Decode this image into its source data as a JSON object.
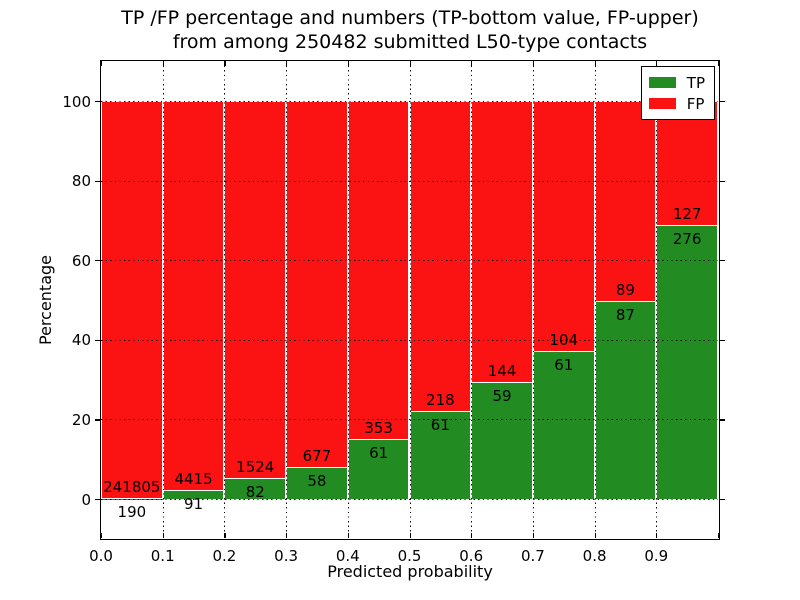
{
  "title": {
    "line1": "TP /FP percentage and numbers (TP-bottom value, FP-upper)",
    "line2": "from among 250482 submitted L50-type contacts"
  },
  "chart_data": {
    "type": "bar",
    "stacked": true,
    "title": "TP /FP percentage and numbers (TP-bottom value, FP-upper) from among 250482 submitted L50-type contacts",
    "xlabel": "Predicted probability",
    "ylabel": "Percentage",
    "total_contacts": 250482,
    "bin_starts": [
      0.0,
      0.1,
      0.2,
      0.3,
      0.4,
      0.5,
      0.6,
      0.7,
      0.8,
      0.9
    ],
    "bin_width": 0.1,
    "x_tick_labels": [
      "0.0",
      "0.1",
      "0.2",
      "0.3",
      "0.4",
      "0.5",
      "0.6",
      "0.7",
      "0.8",
      "0.9"
    ],
    "y_ticks": [
      0,
      20,
      40,
      60,
      80,
      100
    ],
    "xlim": [
      0.0,
      1.0
    ],
    "ylim": [
      -10.5,
      110
    ],
    "grid": "dotted-both-axes",
    "series": [
      {
        "name": "TP",
        "role": "bottom",
        "color": "#228b22",
        "counts": [
          190,
          91,
          82,
          58,
          61,
          61,
          59,
          61,
          87,
          276
        ]
      },
      {
        "name": "FP",
        "role": "upper",
        "color": "#fb1313",
        "counts": [
          241805,
          4415,
          1524,
          677,
          353,
          218,
          144,
          104,
          89,
          127
        ]
      }
    ],
    "tp_percent": [
      0.08,
      2.02,
      5.11,
      7.89,
      14.73,
      21.86,
      29.06,
      36.97,
      49.43,
      68.49
    ],
    "bar_total_percent": 100,
    "legend": {
      "position": "upper right",
      "entries": [
        {
          "label": "TP",
          "color": "#228b22"
        },
        {
          "label": "FP",
          "color": "#fb1313"
        }
      ]
    }
  }
}
